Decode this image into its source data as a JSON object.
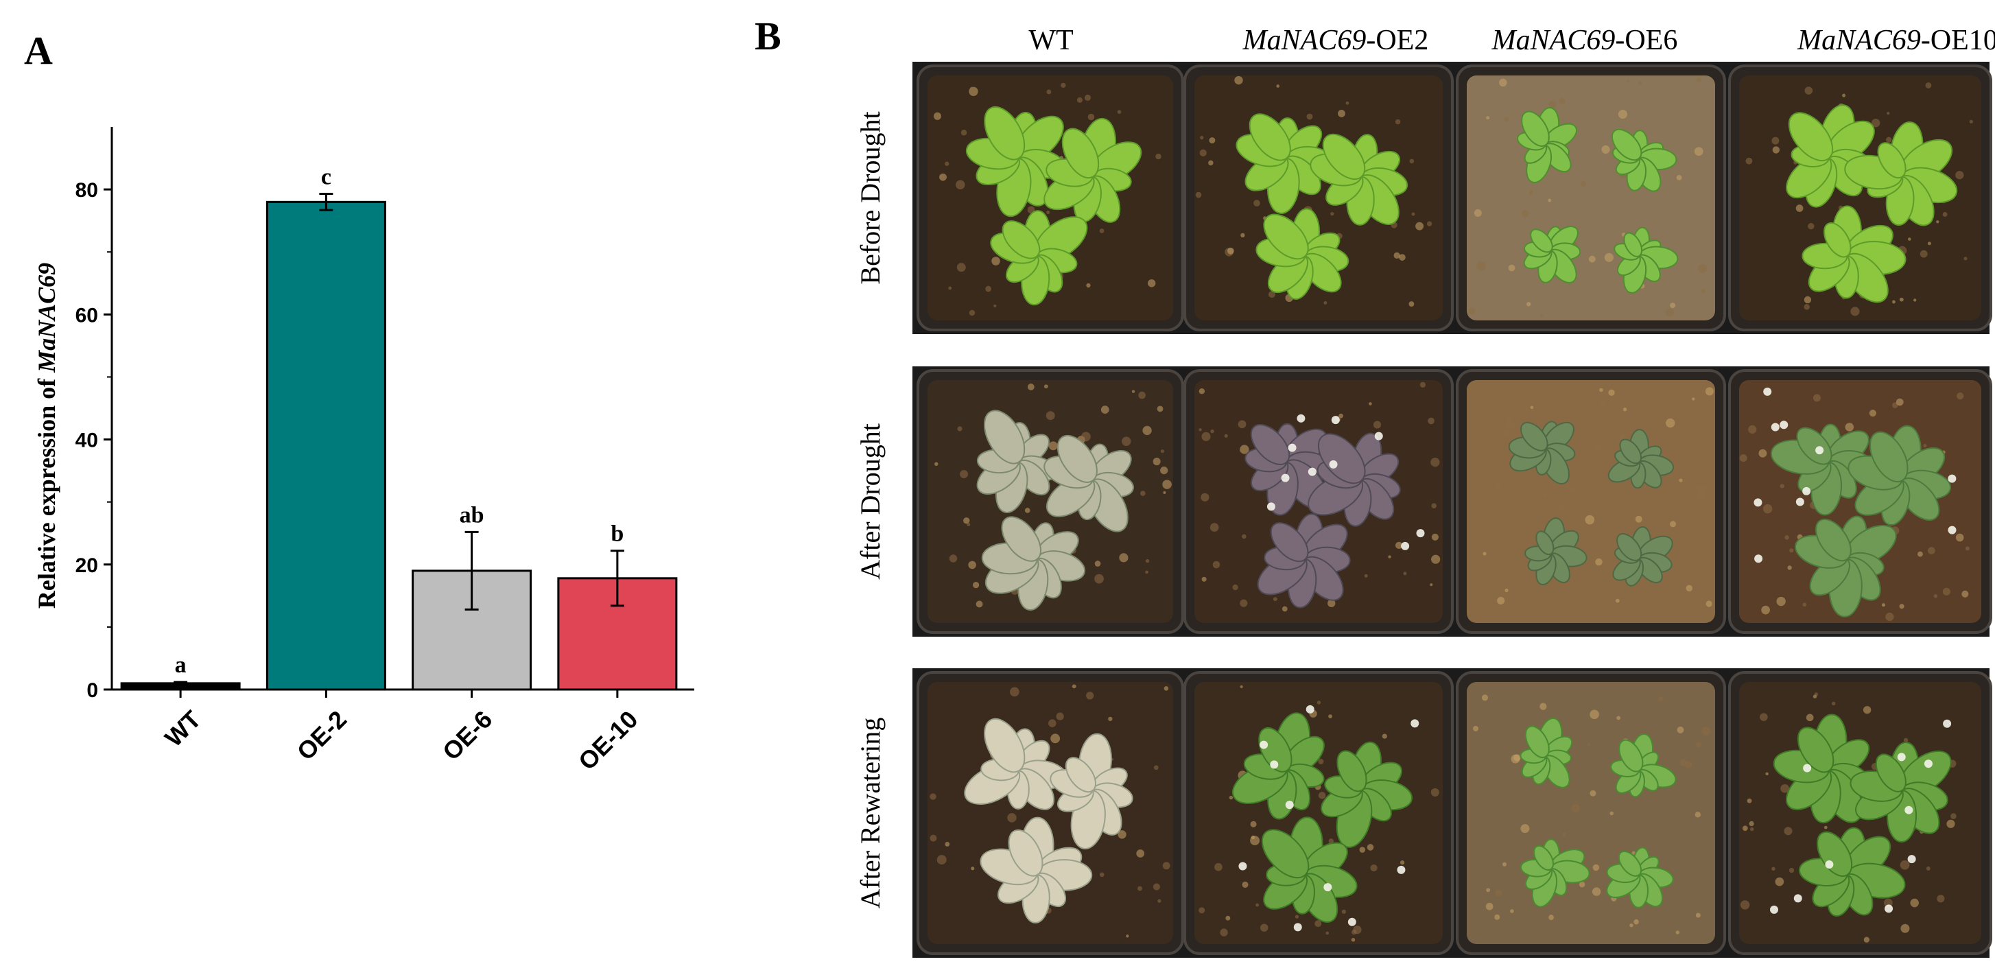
{
  "panel_a_letter": "A",
  "panel_b_letter": "B",
  "chart_data": {
    "type": "bar",
    "categories": [
      "WT",
      "OE-2",
      "OE-6",
      "OE-10"
    ],
    "values": [
      1,
      78,
      19,
      17.8
    ],
    "errors": [
      0.2,
      1.3,
      6.2,
      4.4
    ],
    "significance": [
      "a",
      "c",
      "ab",
      "b"
    ],
    "colors": [
      "#000000",
      "#007b7b",
      "#bdbdbd",
      "#e04556"
    ],
    "ylabel_prefix": "Relative expression of ",
    "ylabel_gene": "MaNAC69",
    "xlabel": "",
    "yticks": [
      0,
      20,
      40,
      60,
      80
    ],
    "ylim": [
      0,
      90
    ]
  },
  "photo_panel": {
    "columns": [
      {
        "gene": "",
        "suffix": "WT"
      },
      {
        "gene": "MaNAC69",
        "suffix": "-OE2"
      },
      {
        "gene": "MaNAC69",
        "suffix": "-OE6"
      },
      {
        "gene": "MaNAC69",
        "suffix": "-OE10"
      }
    ],
    "rows": [
      {
        "label": "Before Drought",
        "tone": "healthy"
      },
      {
        "label": "After Drought",
        "tone": "stressed"
      },
      {
        "label": "After Rewatering",
        "tone": "recovered"
      }
    ],
    "plant_state": [
      [
        "healthy",
        "healthy",
        "small",
        "healthy"
      ],
      [
        "dry",
        "purple",
        "grayish",
        "greenish"
      ],
      [
        "dead",
        "green-flowering",
        "green-small",
        "green-flowering"
      ]
    ]
  }
}
